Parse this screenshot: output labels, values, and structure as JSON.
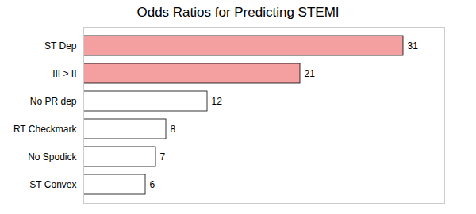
{
  "chart_data": {
    "type": "bar",
    "orientation": "horizontal",
    "title": "Odds Ratios for Predicting STEMI",
    "categories": [
      "ST Dep",
      "III > II",
      "No PR dep",
      "RT Checkmark",
      "No Spodick",
      "ST Convex"
    ],
    "values": [
      31,
      21,
      12,
      8,
      7,
      6
    ],
    "colors": [
      "#f4a0a0",
      "#f4a0a0",
      "#ffffff",
      "#ffffff",
      "#ffffff",
      "#ffffff"
    ],
    "xlim": [
      0,
      35
    ],
    "xticks": [],
    "data_labels": true,
    "tick_labels": "y"
  }
}
